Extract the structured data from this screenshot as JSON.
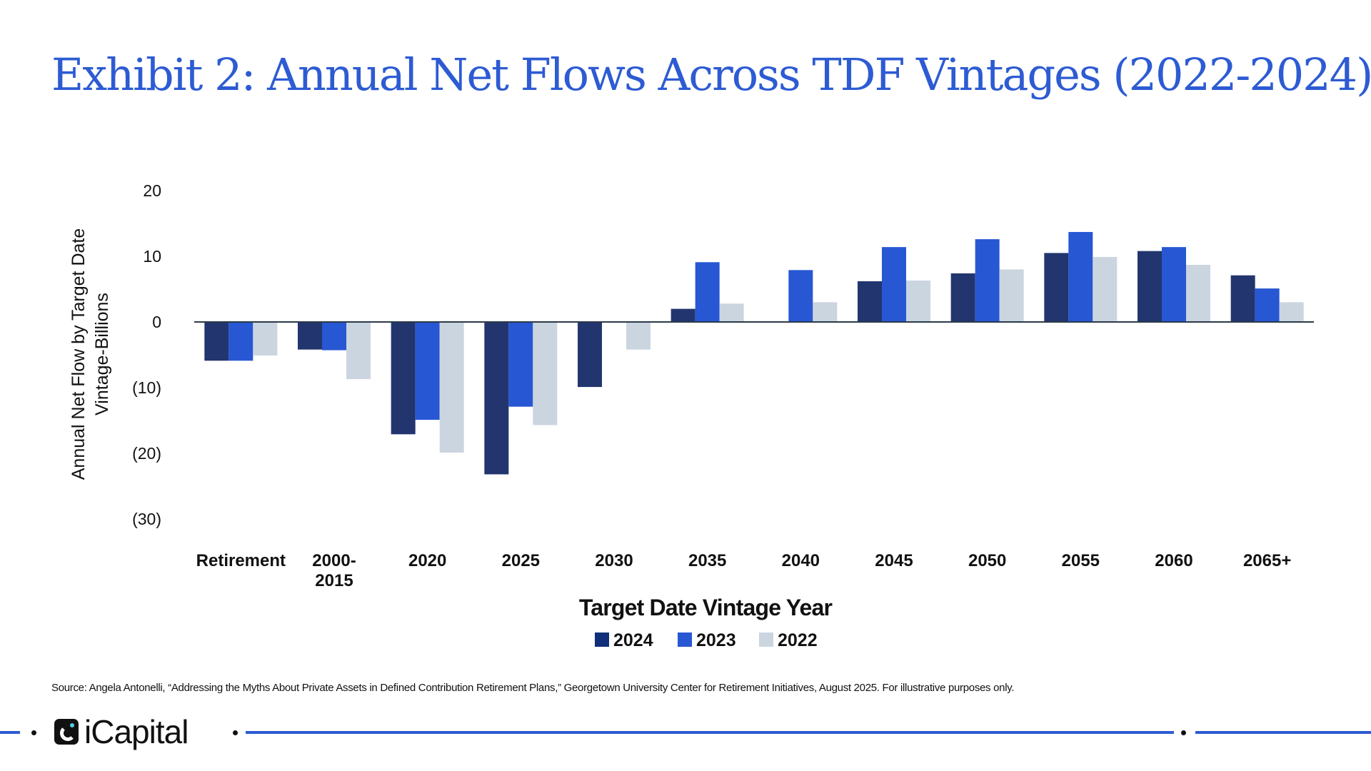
{
  "title": "Exhibit 2: Annual Net Flows Across TDF Vintages (2022-2024)",
  "source": "Source: Angela Antonelli, “Addressing the Myths About Private Assets in Defined Contribution Retirement Plans,” Georgetown University Center for Retirement Initiatives, August 2025. For illustrative purposes only.",
  "footer": {
    "logo_text": "iCapital",
    "line_color": "#2d5bd3"
  },
  "chart_data": {
    "type": "bar",
    "title": "",
    "xlabel": "Target Date Vintage Year",
    "ylabel_lines": [
      "Annual Net Flow by Target Date",
      "Vintage-Billions"
    ],
    "ylim": [
      -30,
      20
    ],
    "yticks": [
      20,
      10,
      0,
      -10,
      -20,
      -30
    ],
    "ytick_labels": [
      "20",
      "10",
      "0",
      "(10)",
      "(20)",
      "(30)"
    ],
    "grid": false,
    "legend_position": "bottom",
    "categories": [
      [
        "Retirement"
      ],
      [
        "2000-",
        "2015"
      ],
      [
        "2020"
      ],
      [
        "2025"
      ],
      [
        "2030"
      ],
      [
        "2035"
      ],
      [
        "2040"
      ],
      [
        "2045"
      ],
      [
        "2050"
      ],
      [
        "2055"
      ],
      [
        "2060"
      ],
      [
        "2065+"
      ]
    ],
    "series": [
      {
        "name": "2024",
        "color": "#22356e",
        "values": [
          -5.9,
          -4.2,
          -17.1,
          -23.2,
          -9.9,
          2.0,
          0,
          6.2,
          7.4,
          10.5,
          10.8,
          7.1
        ]
      },
      {
        "name": "2023",
        "color": "#2757d3",
        "values": [
          -5.9,
          -4.3,
          -14.9,
          -12.9,
          0,
          9.1,
          7.9,
          11.4,
          12.6,
          13.7,
          11.4,
          5.1
        ]
      },
      {
        "name": "2022",
        "color": "#cbd5e0",
        "values": [
          -5.1,
          -8.7,
          -19.9,
          -15.7,
          -4.2,
          2.8,
          3.0,
          6.3,
          8.0,
          9.9,
          8.7,
          3.0
        ]
      }
    ],
    "legend_swatch_colors": [
      "#0f2f7a",
      "#2757d3",
      "#cbd5e0"
    ]
  }
}
